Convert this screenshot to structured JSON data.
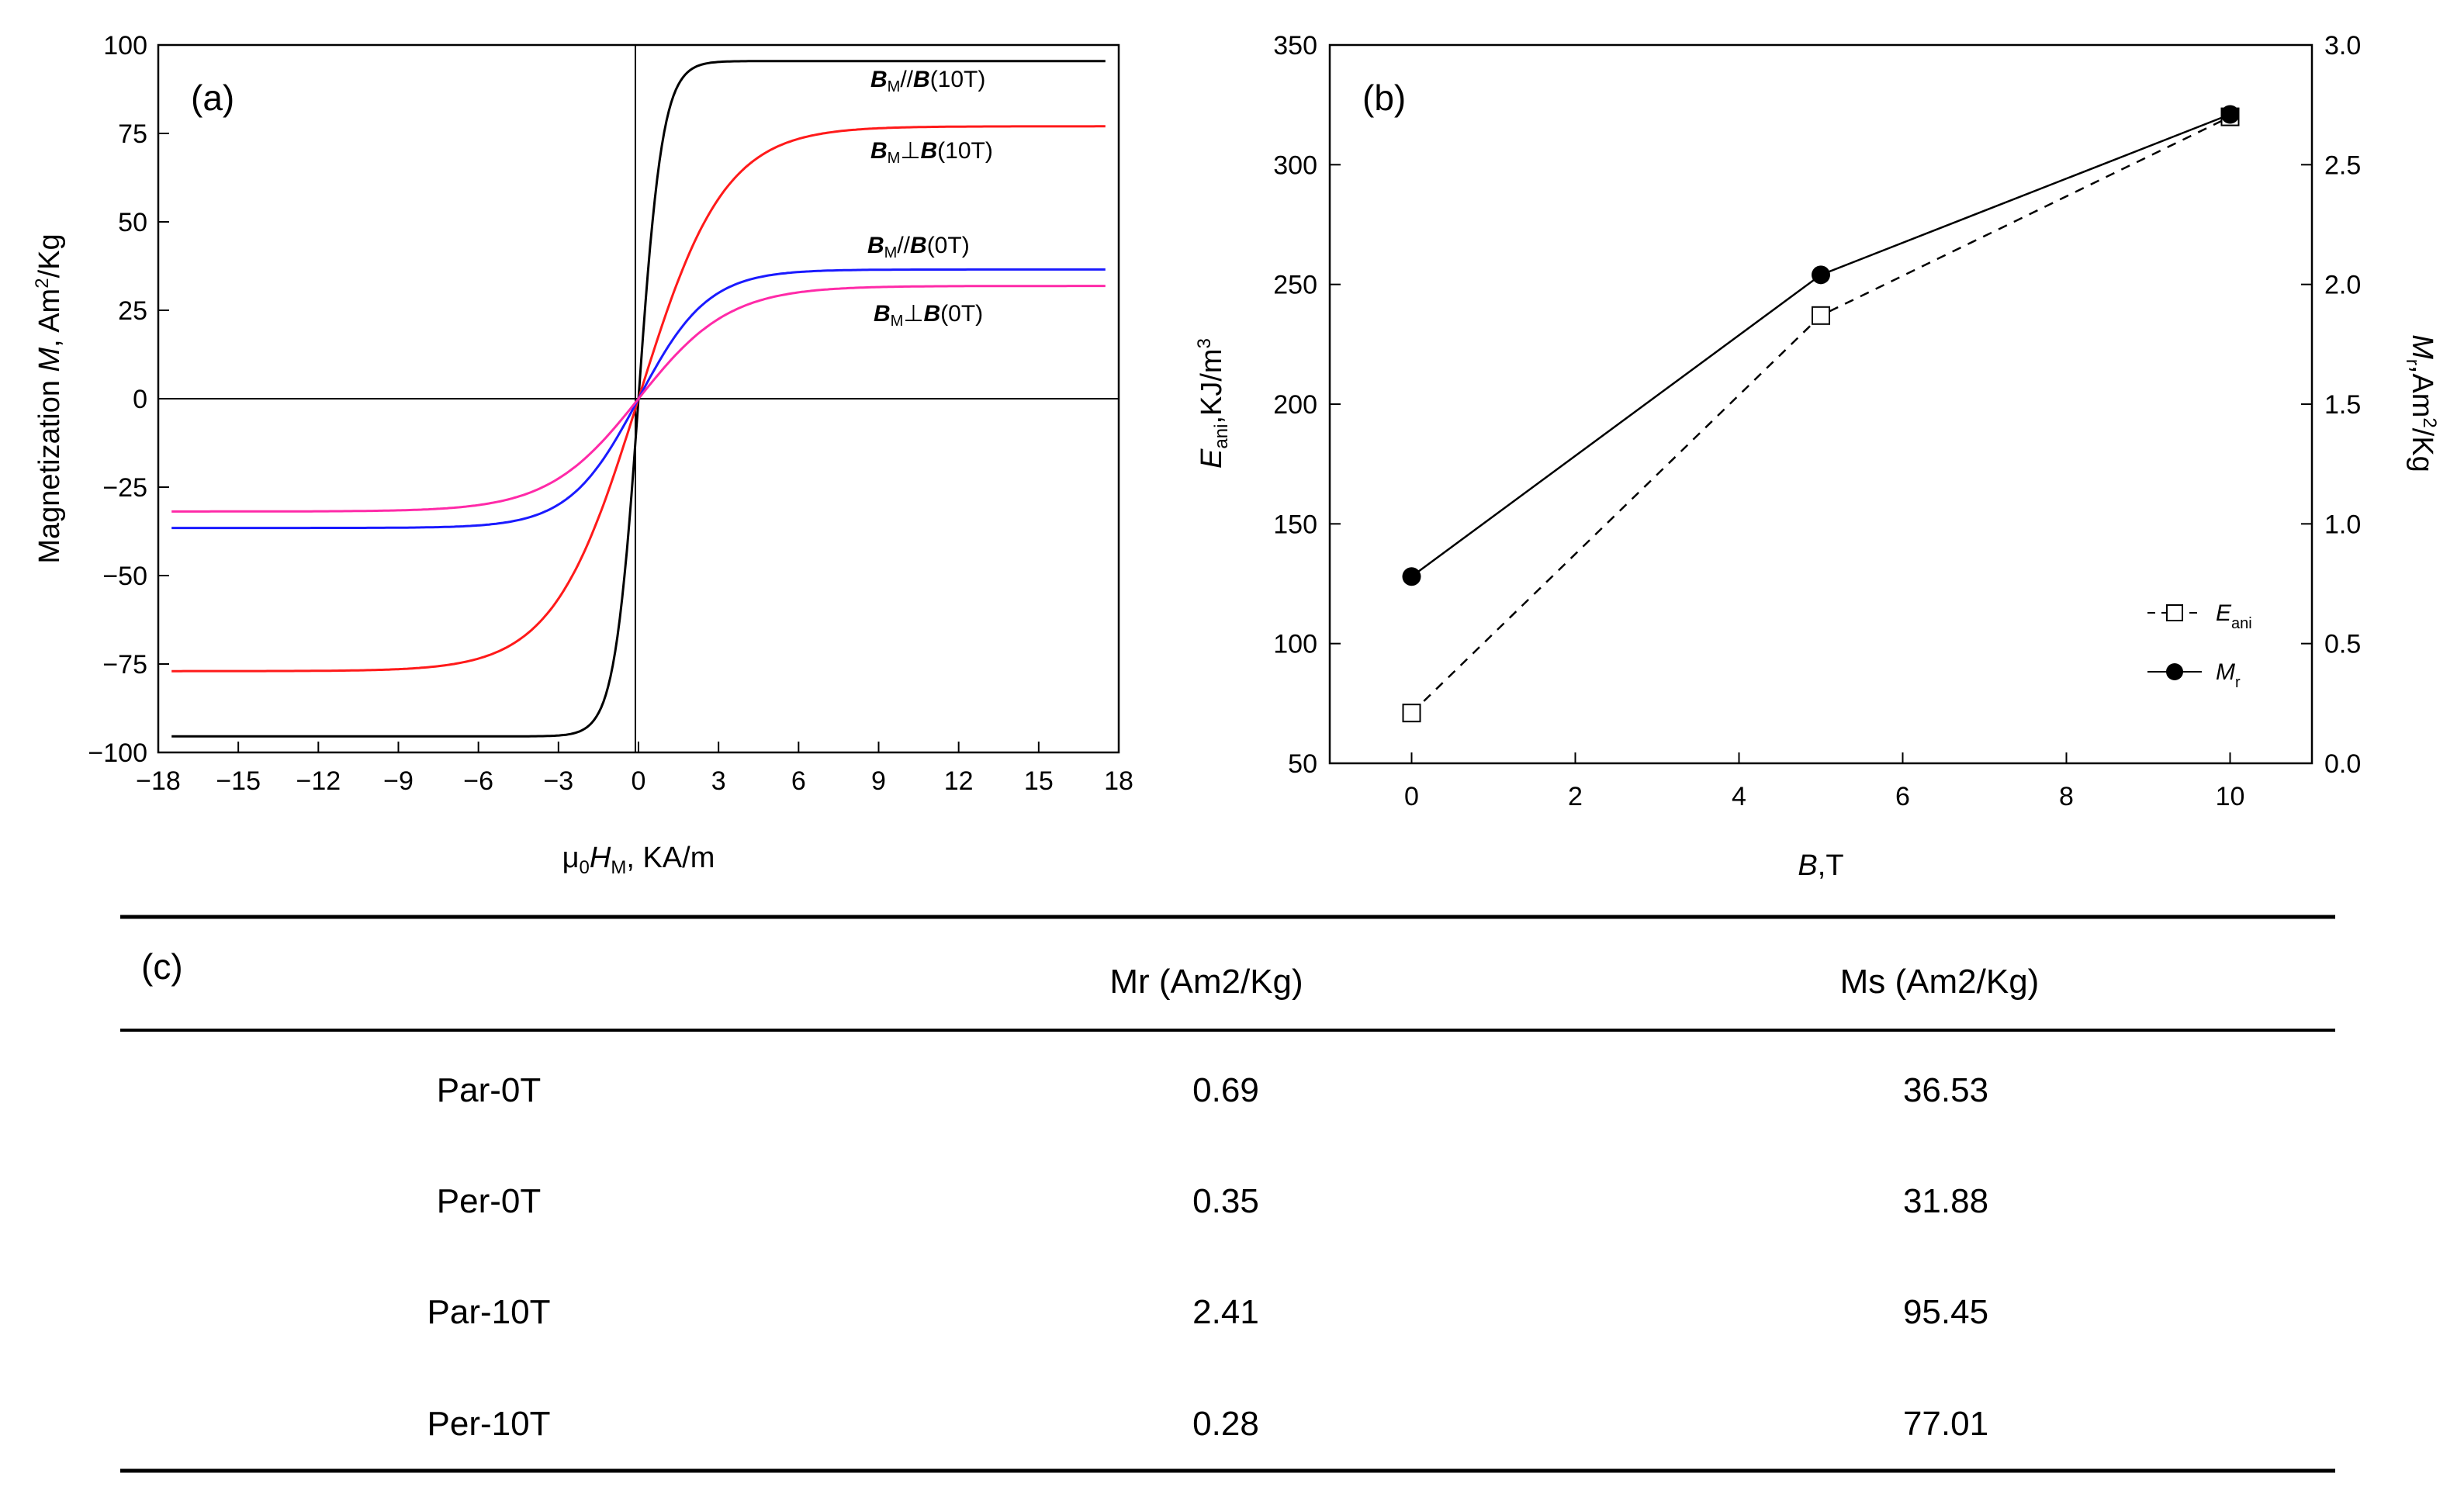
{
  "chart_data": [
    {
      "panel": "(a)",
      "type": "line",
      "xlabel_mu": "μ",
      "xlabel_mu_sub": "0",
      "xlabel_H": "H",
      "xlabel_H_sub": "M",
      "xlabel_rest": ", KA/m",
      "ylabel_main": "Magnetization ",
      "ylabel_M": "M",
      "ylabel_unit": ", Am",
      "ylabel_sup": "2",
      "ylabel_tail": "/Kg",
      "xlim": [
        -18,
        18
      ],
      "ylim": [
        -100,
        100
      ],
      "x_ticks": [
        -18,
        -15,
        -12,
        -9,
        -6,
        -3,
        0,
        3,
        6,
        9,
        12,
        15,
        18
      ],
      "y_ticks": [
        -100,
        -75,
        -50,
        -25,
        0,
        25,
        50,
        75,
        100
      ],
      "series": [
        {
          "name": "B_M//B(10T)",
          "color": "#000000",
          "ms": 95.45,
          "h0": 0.9,
          "label": {
            "B1": "B",
            "sub": "M",
            "rel": "//",
            "B2": "B",
            "field": "(10T)"
          }
        },
        {
          "name": "B_M⊥B(10T)",
          "color": "#ff1a1a",
          "ms": 77.01,
          "h0": 3.2,
          "label": {
            "B1": "B",
            "sub": "M",
            "rel": "⊥",
            "B2": "B",
            "field": "(10T)"
          }
        },
        {
          "name": "B_M//B(0T)",
          "color": "#1a1aff",
          "ms": 36.53,
          "h0": 2.6,
          "label": {
            "B1": "B",
            "sub": "M",
            "rel": "//",
            "B2": "B",
            "field": "(0T)"
          }
        },
        {
          "name": "B_M⊥B(0T)",
          "color": "#ff2aa8",
          "ms": 31.88,
          "h0": 3.4,
          "label": {
            "B1": "B",
            "sub": "M",
            "rel": "⊥",
            "B2": "B",
            "field": "(0T)"
          }
        }
      ]
    },
    {
      "panel": "(b)",
      "type": "line",
      "xlabel_B": "B",
      "xlabel_rest": ",T",
      "ylabel_left_E": "E",
      "ylabel_left_sub": "ani",
      "ylabel_left_rest": ",KJ/m",
      "ylabel_left_sup": "3",
      "ylabel_right_M": "M",
      "ylabel_right_sub": "r",
      "ylabel_right_rest": ",Am",
      "ylabel_right_sup": "2",
      "ylabel_right_tail": "/Kg",
      "xlim": [
        -1,
        11
      ],
      "ylim_left": [
        50,
        350
      ],
      "ylim_right": [
        0.0,
        3.0
      ],
      "x_ticks": [
        0,
        2,
        4,
        6,
        8,
        10
      ],
      "y_ticks_left": [
        50,
        100,
        150,
        200,
        250,
        300,
        350
      ],
      "y_ticks_right": [
        "0.0",
        "0.5",
        "1.0",
        "1.5",
        "2.0",
        "2.5",
        "3.0"
      ],
      "x": [
        0,
        5,
        10
      ],
      "series": [
        {
          "name": "E_ani",
          "axis": "left",
          "values": [
            71,
            237,
            320
          ],
          "marker": "open-square",
          "dash": true,
          "legend_E": "E",
          "legend_sub": "ani"
        },
        {
          "name": "M_r",
          "axis": "right",
          "values": [
            0.78,
            2.04,
            2.71
          ],
          "marker": "filled-circle",
          "dash": false,
          "legend_M": "M",
          "legend_sub": "r"
        }
      ]
    },
    {
      "panel": "(c)",
      "type": "table",
      "columns": [
        "",
        "Mr (Am2/Kg)",
        "Ms (Am2/Kg)"
      ],
      "rows": [
        [
          "Par-0T",
          "0.69",
          "36.53"
        ],
        [
          "Per-0T",
          "0.35",
          "31.88"
        ],
        [
          "Par-10T",
          "2.41",
          "95.45"
        ],
        [
          "Per-10T",
          "0.28",
          "77.01"
        ]
      ]
    }
  ]
}
